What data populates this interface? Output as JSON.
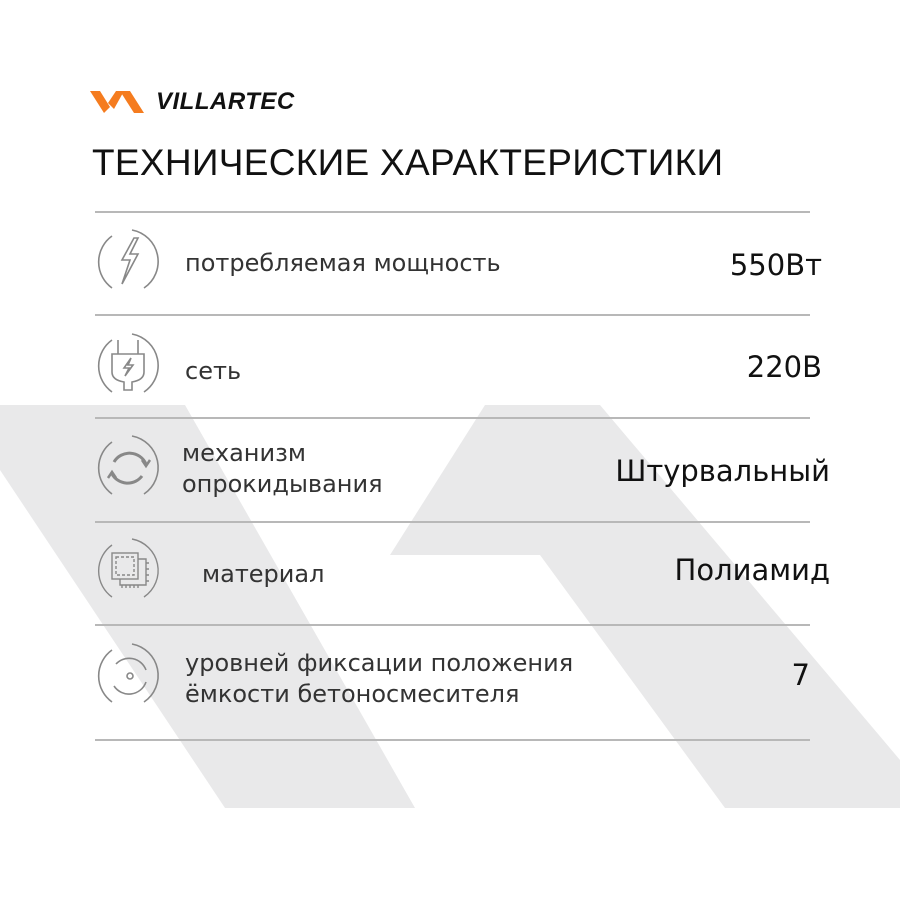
{
  "brand": {
    "name": "VILLARTEC",
    "accent": "#f57c1f"
  },
  "title": "ТЕХНИЧЕСКИЕ ХАРАКТЕРИСТИКИ",
  "specs": [
    {
      "icon": "lightning-icon",
      "label": "потребляемая мощность",
      "value": "550Вт"
    },
    {
      "icon": "plug-icon",
      "label": "сеть",
      "value": "220В"
    },
    {
      "icon": "rotation-icon",
      "label_lines": [
        "механизм",
        "опрокидывания"
      ],
      "value": "Штурвальный"
    },
    {
      "icon": "material-chip-icon",
      "label": "материал",
      "value": "Полиамид"
    },
    {
      "icon": "circle-position-icon",
      "label_lines": [
        "уровней фиксации положения",
        "ёмкости бетоносмесителя"
      ],
      "value": "7"
    }
  ]
}
